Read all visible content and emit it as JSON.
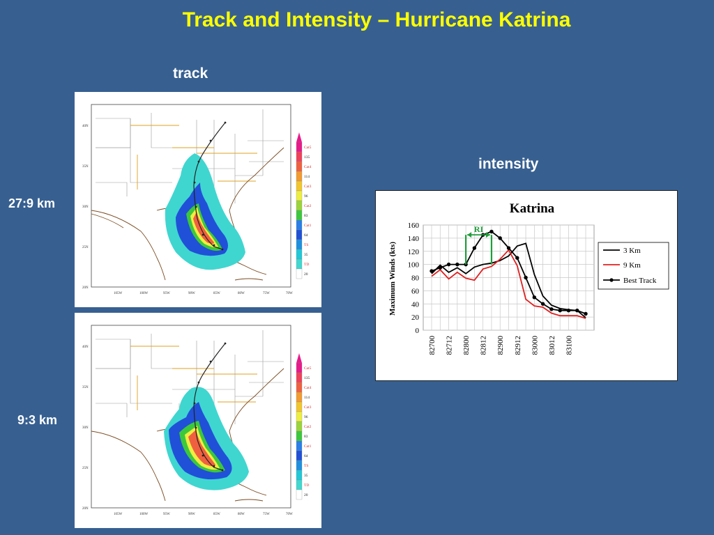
{
  "slide": {
    "title": "Track and Intensity – Hurricane Katrina",
    "track_label": "track",
    "intensity_label": "intensity",
    "row_labels": [
      "27:9 km",
      "9:3 km"
    ]
  },
  "maps": {
    "lat_labels": [
      "40N",
      "35N",
      "30N",
      "25N",
      "20N"
    ],
    "lon_labels": [
      "105W",
      "100W",
      "95W",
      "90W",
      "85W",
      "80W",
      "75W",
      "70W"
    ],
    "scale": [
      {
        "label": "Cat5",
        "color": "#e8198a"
      },
      {
        "label": "135",
        "color": "#f0405a"
      },
      {
        "label": "Cat4",
        "color": "#f06040"
      },
      {
        "label": "114",
        "color": "#f39a30"
      },
      {
        "label": "Cat3",
        "color": "#f2c52c"
      },
      {
        "label": "96",
        "color": "#eeee40"
      },
      {
        "label": "Cat2",
        "color": "#9bd43a"
      },
      {
        "label": "83",
        "color": "#3cc83c"
      },
      {
        "label": "Cat1",
        "color": "#2a7fe8"
      },
      {
        "label": "64",
        "color": "#2050d8"
      },
      {
        "label": "TS",
        "color": "#1e90e0"
      },
      {
        "label": "35",
        "color": "#20c8d8"
      },
      {
        "label": "TD",
        "color": "#40d8d0"
      },
      {
        "label": "20",
        "color": "#ffffff"
      }
    ]
  },
  "chart_data": {
    "type": "line",
    "title": "Katrina",
    "ylabel": "Maximum Winds (kts)",
    "xlabel": "",
    "ylim": [
      0,
      160
    ],
    "y_ticks": [
      0,
      20,
      40,
      60,
      80,
      100,
      120,
      140,
      160
    ],
    "x_tick_labels": [
      "82700",
      "82712",
      "82800",
      "82812",
      "82900",
      "82912",
      "83000",
      "83012",
      "83100"
    ],
    "legend_position": "right",
    "annotation": {
      "text": "RI",
      "from_index": 4,
      "to_index": 7,
      "color": "#1f9e3a"
    },
    "series": [
      {
        "name": "3 Km",
        "color": "#000000",
        "marker": false,
        "values": [
          86,
          99,
          88,
          95,
          86,
          96,
          100,
          102,
          106,
          113,
          128,
          132,
          85,
          52,
          38,
          33,
          31,
          30,
          19
        ]
      },
      {
        "name": "9 Km",
        "color": "#e02020",
        "marker": false,
        "values": [
          82,
          92,
          78,
          88,
          79,
          76,
          93,
          97,
          108,
          122,
          98,
          47,
          37,
          35,
          26,
          22,
          22,
          22,
          18
        ]
      },
      {
        "name": "Best Track",
        "color": "#000000",
        "marker": true,
        "values": [
          90,
          95,
          100,
          100,
          100,
          125,
          145,
          150,
          140,
          125,
          110,
          80,
          50,
          40,
          32,
          30,
          30,
          30,
          25
        ]
      }
    ]
  }
}
